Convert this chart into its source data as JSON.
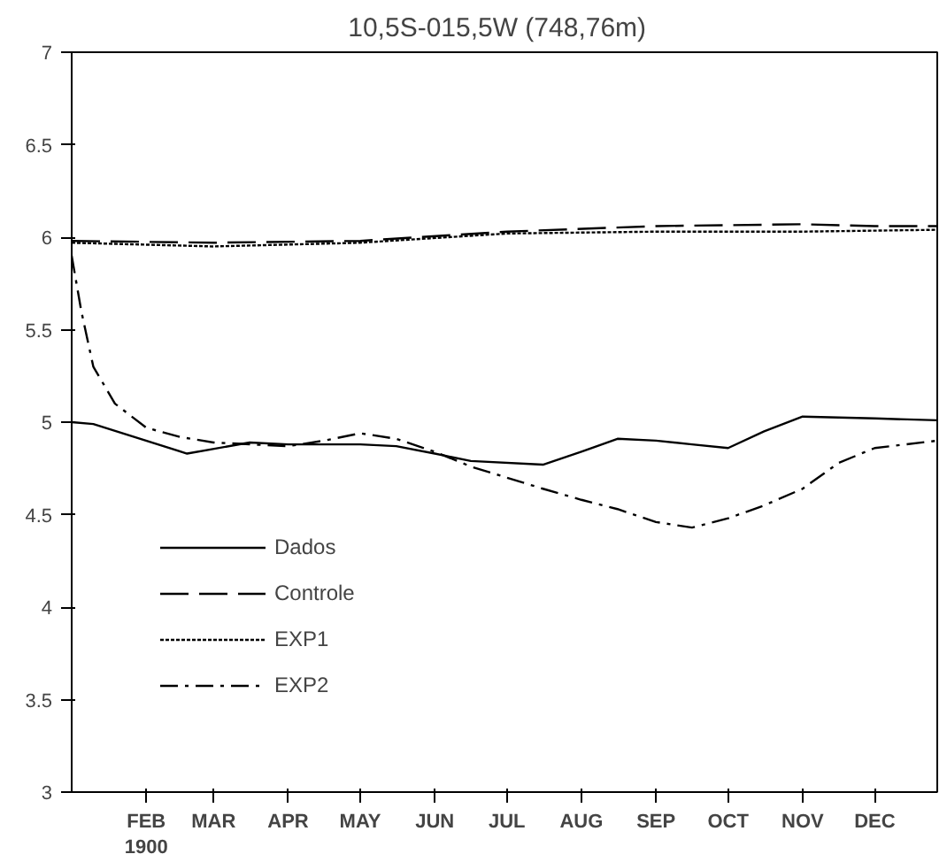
{
  "chart_data": {
    "type": "line",
    "title": "10,5S-015,5W   (748,76m)",
    "xlim": [
      "1900-01-01",
      "1900-12-27"
    ],
    "ylim": [
      3,
      7
    ],
    "xticks": [
      {
        "value": "1900-02-01",
        "label": "FEB\n1900"
      },
      {
        "value": "1900-03-01",
        "label": "MAR"
      },
      {
        "value": "1900-04-01",
        "label": "APR"
      },
      {
        "value": "1900-05-01",
        "label": "MAY"
      },
      {
        "value": "1900-06-01",
        "label": "JUN"
      },
      {
        "value": "1900-07-01",
        "label": "JUL"
      },
      {
        "value": "1900-08-01",
        "label": "AUG"
      },
      {
        "value": "1900-09-01",
        "label": "SEP"
      },
      {
        "value": "1900-10-01",
        "label": "OCT"
      },
      {
        "value": "1900-11-01",
        "label": "NOV"
      },
      {
        "value": "1900-12-01",
        "label": "DEC"
      }
    ],
    "yticks": [
      3,
      3.5,
      4,
      4.5,
      5,
      5.5,
      6,
      6.5,
      7
    ],
    "grid": false,
    "legend": "bottom left",
    "marker": "none",
    "series": [
      {
        "name": "Dados",
        "color": "#000000",
        "line_style": "solid",
        "x": [
          "1900-01-01",
          "1900-01-10",
          "1900-02-18",
          "1900-03-16",
          "1900-04-01",
          "1900-05-01",
          "1900-05-16",
          "1900-06-01",
          "1900-06-16",
          "1900-07-16",
          "1900-08-01",
          "1900-08-16",
          "1900-09-01",
          "1900-09-16",
          "1900-10-01",
          "1900-10-16",
          "1900-11-01",
          "1900-12-01",
          "1900-12-27"
        ],
        "values": [
          5.0,
          4.99,
          4.83,
          4.89,
          4.88,
          4.88,
          4.87,
          4.83,
          4.79,
          4.77,
          4.84,
          4.91,
          4.9,
          4.88,
          4.86,
          4.95,
          5.03,
          5.02,
          5.01
        ]
      },
      {
        "name": "Controle",
        "color": "#000000",
        "line_style": "dashed",
        "x": [
          "1900-01-01",
          "1900-03-01",
          "1900-05-01",
          "1900-07-01",
          "1900-09-01",
          "1900-11-01",
          "1900-12-01",
          "1900-12-27"
        ],
        "values": [
          5.98,
          5.97,
          5.98,
          6.03,
          6.06,
          6.07,
          6.06,
          6.06
        ]
      },
      {
        "name": "EXP1",
        "color": "#000000",
        "line_style": "dotted",
        "x": [
          "1900-01-01",
          "1900-03-01",
          "1900-05-01",
          "1900-07-01",
          "1900-09-01",
          "1900-11-01",
          "1900-12-27"
        ],
        "values": [
          5.97,
          5.95,
          5.97,
          6.02,
          6.03,
          6.03,
          6.04
        ]
      },
      {
        "name": "EXP2",
        "color": "#000000",
        "line_style": "dashdot",
        "x": [
          "1900-01-01",
          "1900-01-05",
          "1900-01-10",
          "1900-01-19",
          "1900-02-01",
          "1900-02-15",
          "1900-03-01",
          "1900-04-01",
          "1900-04-16",
          "1900-05-01",
          "1900-05-16",
          "1900-06-01",
          "1900-06-16",
          "1900-07-01",
          "1900-07-16",
          "1900-08-01",
          "1900-08-16",
          "1900-09-01",
          "1900-09-16",
          "1900-10-01",
          "1900-10-16",
          "1900-11-01",
          "1900-11-16",
          "1900-12-01",
          "1900-12-27"
        ],
        "values": [
          5.9,
          5.6,
          5.3,
          5.1,
          4.97,
          4.92,
          4.89,
          4.87,
          4.9,
          4.94,
          4.91,
          4.84,
          4.76,
          4.7,
          4.64,
          4.58,
          4.53,
          4.46,
          4.43,
          4.48,
          4.55,
          4.64,
          4.78,
          4.86,
          4.9
        ]
      }
    ]
  }
}
